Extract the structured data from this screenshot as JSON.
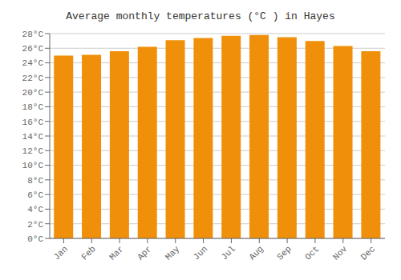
{
  "chart_data": {
    "type": "bar",
    "title": "Average monthly temperatures (°C ) in Hayes",
    "categories": [
      "Jan",
      "Feb",
      "Mar",
      "Apr",
      "May",
      "Jun",
      "Jul",
      "Aug",
      "Sep",
      "Oct",
      "Nov",
      "Dec"
    ],
    "values": [
      25.0,
      25.1,
      25.6,
      26.2,
      27.1,
      27.4,
      27.7,
      27.8,
      27.5,
      27.0,
      26.3,
      25.6
    ],
    "color": "#F0900A",
    "ylim": [
      0,
      28
    ],
    "yticks": [
      {
        "value": 0,
        "label": "0°C"
      },
      {
        "value": 2,
        "label": "2°C"
      },
      {
        "value": 4,
        "label": "4°C"
      },
      {
        "value": 6,
        "label": "6°C"
      },
      {
        "value": 8,
        "label": "8°C"
      },
      {
        "value": 10,
        "label": "10°C"
      },
      {
        "value": 12,
        "label": "12°C"
      },
      {
        "value": 14,
        "label": "14°C"
      },
      {
        "value": 16,
        "label": "16°C"
      },
      {
        "value": 18,
        "label": "18°C"
      },
      {
        "value": 20,
        "label": "20°C"
      },
      {
        "value": 22,
        "label": "22°C"
      },
      {
        "value": 24,
        "label": "24°C"
      },
      {
        "value": 26,
        "label": "26°C"
      },
      {
        "value": 28,
        "label": "28°C"
      }
    ],
    "grid": true
  }
}
